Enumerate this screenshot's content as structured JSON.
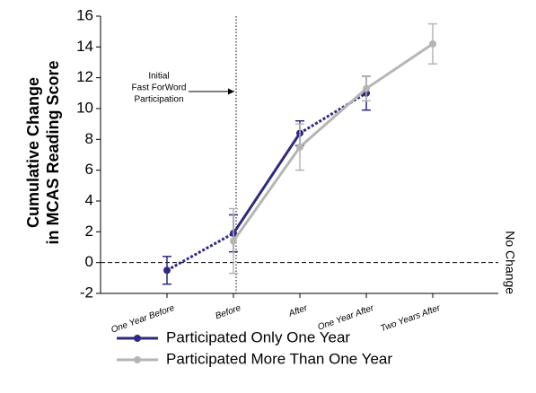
{
  "chart_data": {
    "type": "line",
    "ylabel": [
      "Cumulative Change",
      "in MCAS Reading Score"
    ],
    "categories": [
      "One Year Before",
      "Before",
      "After",
      "One Year After",
      "Two Years After"
    ],
    "series": [
      {
        "name": "Participated Only One Year",
        "color": "#2e2a7f",
        "values": [
          -0.5,
          1.9,
          8.4,
          11.0,
          null
        ],
        "errors": [
          0.9,
          1.2,
          0.8,
          1.1,
          null
        ],
        "line_styles": [
          "dashed",
          "solid",
          "dashed",
          "solid"
        ]
      },
      {
        "name": "Participated More Than One Year",
        "color": "#b5b5b5",
        "values": [
          null,
          1.4,
          7.5,
          11.3,
          14.2
        ],
        "errors": [
          null,
          2.1,
          1.5,
          0.8,
          1.3
        ],
        "line_styles": [
          "solid",
          "solid",
          "solid",
          "solid"
        ]
      }
    ],
    "ylim": [
      -2,
      16
    ],
    "yticks": [
      -2,
      0,
      2,
      4,
      6,
      8,
      10,
      12,
      14,
      16
    ],
    "hline": {
      "value": 0,
      "label": "No Change"
    },
    "annotation": [
      "Initial",
      "Fast ForWord",
      "Participation"
    ]
  }
}
